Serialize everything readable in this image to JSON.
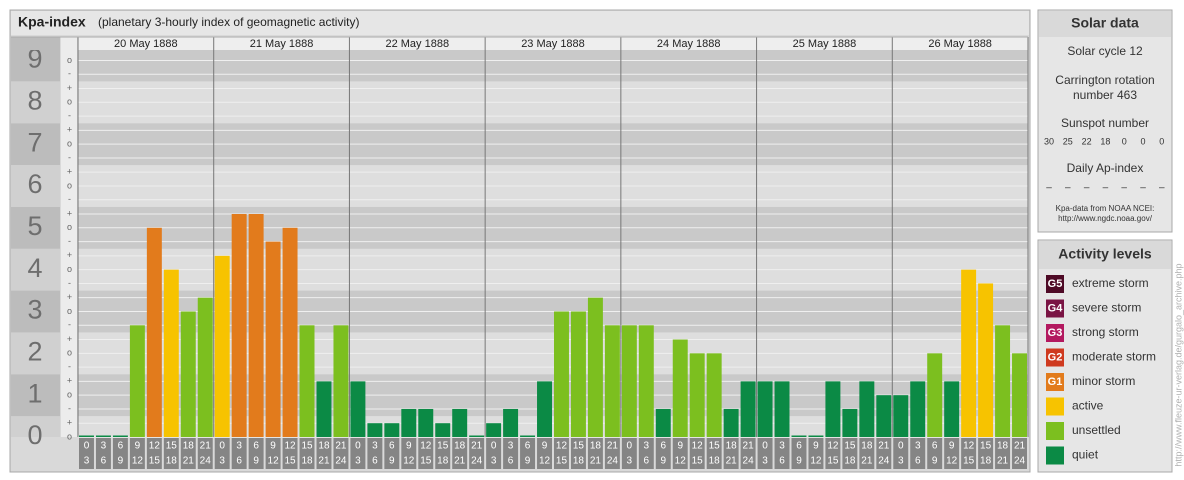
{
  "chart_data": {
    "type": "bar",
    "title": "Kpa-index",
    "subtitle": "(planetary 3-hourly index of geomagnetic activity)",
    "ylim": [
      0,
      9.25
    ],
    "yticks": [
      0,
      1,
      2,
      3,
      4,
      5,
      6,
      7,
      8,
      9
    ],
    "grid": true,
    "y_minor_ticks": [
      {
        "value": 0,
        "label": "o"
      },
      {
        "value": 0.33,
        "label": "+"
      },
      {
        "value": 0.67,
        "label": "-"
      },
      {
        "value": 1,
        "label": "o"
      },
      {
        "value": 1.33,
        "label": "+"
      },
      {
        "value": 1.67,
        "label": "-"
      },
      {
        "value": 2,
        "label": "o"
      },
      {
        "value": 2.33,
        "label": "+"
      },
      {
        "value": 2.67,
        "label": "-"
      },
      {
        "value": 3,
        "label": "o"
      },
      {
        "value": 3.33,
        "label": "+"
      },
      {
        "value": 3.67,
        "label": "-"
      },
      {
        "value": 4,
        "label": "o"
      },
      {
        "value": 4.33,
        "label": "+"
      },
      {
        "value": 4.67,
        "label": "-"
      },
      {
        "value": 5,
        "label": "o"
      },
      {
        "value": 5.33,
        "label": "+"
      },
      {
        "value": 5.67,
        "label": "-"
      },
      {
        "value": 6,
        "label": "o"
      },
      {
        "value": 6.33,
        "label": "+"
      },
      {
        "value": 6.67,
        "label": "-"
      },
      {
        "value": 7,
        "label": "o"
      },
      {
        "value": 7.33,
        "label": "+"
      },
      {
        "value": 7.67,
        "label": "-"
      },
      {
        "value": 8,
        "label": "o"
      },
      {
        "value": 8.33,
        "label": "+"
      },
      {
        "value": 8.67,
        "label": "-"
      },
      {
        "value": 9,
        "label": "o"
      }
    ],
    "hours": [
      [
        0,
        3
      ],
      [
        3,
        6
      ],
      [
        6,
        9
      ],
      [
        9,
        12
      ],
      [
        12,
        15
      ],
      [
        15,
        18
      ],
      [
        18,
        21
      ],
      [
        21,
        24
      ]
    ],
    "days": [
      {
        "date": "20 May 1888",
        "values": [
          0,
          0,
          0,
          2.67,
          5,
          4,
          3,
          3.33
        ],
        "colors": [
          "#0b8a45",
          "#0b8a45",
          "#0b8a45",
          "#7cbf1f",
          "#e27b1c",
          "#f7c300",
          "#7cbf1f",
          "#7cbf1f"
        ]
      },
      {
        "date": "21 May 1888",
        "values": [
          4.33,
          5.33,
          5.33,
          4.67,
          5,
          2.67,
          1.33,
          2.67
        ],
        "colors": [
          "#f7c300",
          "#e27b1c",
          "#e27b1c",
          "#e27b1c",
          "#e27b1c",
          "#7cbf1f",
          "#0b8a45",
          "#7cbf1f"
        ]
      },
      {
        "date": "22 May 1888",
        "values": [
          1.33,
          0.33,
          0.33,
          0.67,
          0.67,
          0.33,
          0.67,
          0
        ],
        "colors": [
          "#0b8a45",
          "#0b8a45",
          "#0b8a45",
          "#0b8a45",
          "#0b8a45",
          "#0b8a45",
          "#0b8a45",
          "#0b8a45"
        ]
      },
      {
        "date": "23 May 1888",
        "values": [
          0.33,
          0.67,
          0,
          1.33,
          3,
          3,
          3.33,
          2.67
        ],
        "colors": [
          "#0b8a45",
          "#0b8a45",
          "#0b8a45",
          "#0b8a45",
          "#7cbf1f",
          "#7cbf1f",
          "#7cbf1f",
          "#7cbf1f"
        ]
      },
      {
        "date": "24 May 1888",
        "values": [
          2.67,
          2.67,
          0.67,
          2.33,
          2,
          2,
          0.67,
          1.33
        ],
        "colors": [
          "#7cbf1f",
          "#7cbf1f",
          "#0b8a45",
          "#7cbf1f",
          "#7cbf1f",
          "#7cbf1f",
          "#0b8a45",
          "#0b8a45"
        ]
      },
      {
        "date": "25 May 1888",
        "values": [
          1.33,
          1.33,
          0,
          0,
          1.33,
          0.67,
          1.33,
          1
        ],
        "colors": [
          "#0b8a45",
          "#0b8a45",
          "#0b8a45",
          "#0b8a45",
          "#0b8a45",
          "#0b8a45",
          "#0b8a45",
          "#0b8a45"
        ]
      },
      {
        "date": "26 May 1888",
        "values": [
          1,
          1.33,
          2,
          1.33,
          4,
          3.67,
          2.67,
          2
        ],
        "colors": [
          "#0b8a45",
          "#0b8a45",
          "#7cbf1f",
          "#0b8a45",
          "#f7c300",
          "#f7c300",
          "#7cbf1f",
          "#7cbf1f"
        ]
      }
    ]
  },
  "solar_data": {
    "title": "Solar data",
    "solar_cycle": "Solar cycle 12",
    "carrington": [
      "Carrington rotation",
      "number 463"
    ],
    "sunspot_title": "Sunspot number",
    "sunspots": [
      30,
      25,
      22,
      18,
      0,
      0,
      0
    ],
    "ap_title": "Daily Ap-index",
    "ap": [
      "–",
      "–",
      "–",
      "–",
      "–",
      "–",
      "–"
    ],
    "source": [
      "Kpa-data from NOAA NCEI:",
      "http://www.ngdc.noaa.gov/"
    ]
  },
  "activity_levels": {
    "title": "Activity levels",
    "items": [
      {
        "badge": "G5",
        "label": "extreme storm",
        "color": "#4e0a26"
      },
      {
        "badge": "G4",
        "label": "severe storm",
        "color": "#7a1444"
      },
      {
        "badge": "G3",
        "label": "strong storm",
        "color": "#b3195f"
      },
      {
        "badge": "G2",
        "label": "moderate storm",
        "color": "#cf3a1f"
      },
      {
        "badge": "G1",
        "label": "minor storm",
        "color": "#e27b1c"
      },
      {
        "label": "active",
        "color": "#f7c300"
      },
      {
        "label": "unsettled",
        "color": "#7cbf1f"
      },
      {
        "label": "quiet",
        "color": "#0b8a45"
      }
    ]
  },
  "side_url": "http://www.fleuze-ur-verlag.de/gurgalo_archive.php"
}
